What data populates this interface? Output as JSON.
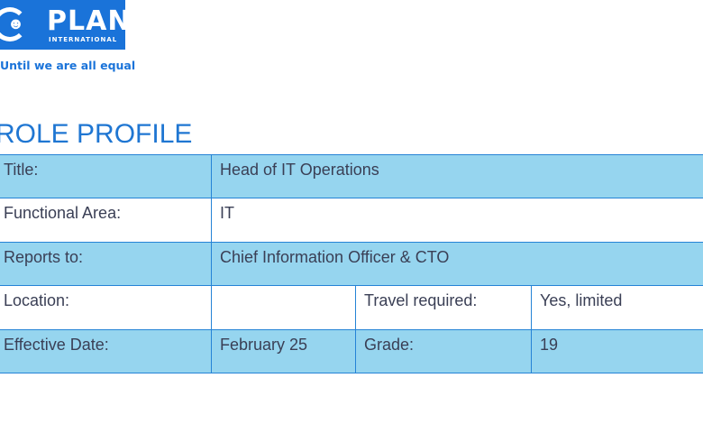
{
  "logo": {
    "name": "PLAN",
    "sub": "INTERNATIONAL",
    "tagline": "Until we are all equal",
    "color": "#1a73d9"
  },
  "heading": "ROLE PROFILE",
  "rows": {
    "title": {
      "label": "Title:",
      "value": "Head of IT Operations"
    },
    "area": {
      "label": "Functional Area:",
      "value": "IT"
    },
    "reports": {
      "label": "Reports to:",
      "value": "Chief Information Officer & CTO"
    },
    "location": {
      "label": "Location:",
      "value": "",
      "travel_label": "Travel required:",
      "travel_value": "Yes, limited"
    },
    "date": {
      "label": "Effective Date:",
      "value": "February 25",
      "grade_label": "Grade:",
      "grade_value": "19"
    }
  },
  "colors": {
    "fill": "#96d5ef",
    "border": "#2583d6",
    "text": "#3a3f55"
  }
}
